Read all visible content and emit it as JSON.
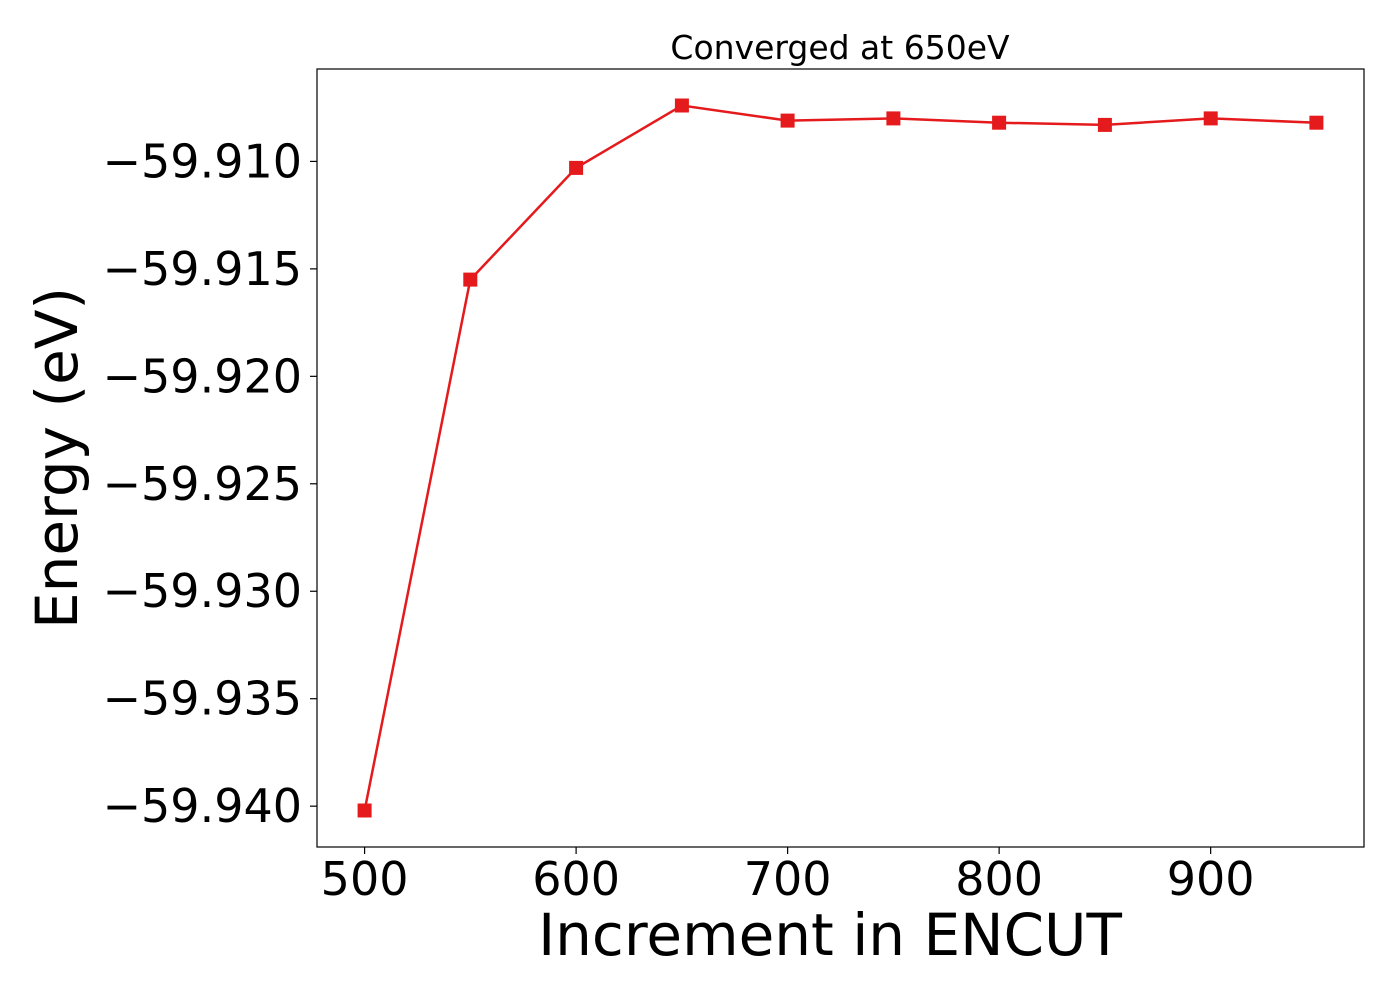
{
  "chart_data": {
    "type": "line",
    "title": "Converged at 650eV",
    "xlabel": "Increment in ENCUT",
    "ylabel": "Energy (eV)",
    "x": [
      500,
      550,
      600,
      650,
      700,
      750,
      800,
      850,
      900,
      950
    ],
    "series": [
      {
        "values": [
          -59.9402,
          -59.9155,
          -59.9103,
          -59.9074,
          -59.9081,
          -59.908,
          -59.9082,
          -59.9083,
          -59.908,
          -59.9082
        ],
        "color": "#e41a1c",
        "marker": "square"
      }
    ],
    "xlim": [
      477.5,
      972.5
    ],
    "ylim": [
      -59.9419,
      -59.9057
    ],
    "xticks": [
      500,
      600,
      700,
      800,
      900
    ],
    "xtick_labels": [
      "500",
      "600",
      "700",
      "800",
      "900"
    ],
    "yticks": [
      -59.94,
      -59.935,
      -59.93,
      -59.925,
      -59.92,
      -59.915,
      -59.91
    ],
    "ytick_labels": [
      "−59.940",
      "−59.935",
      "−59.930",
      "−59.925",
      "−59.920",
      "−59.915",
      "−59.910"
    ],
    "grid": false,
    "legend": "none"
  }
}
